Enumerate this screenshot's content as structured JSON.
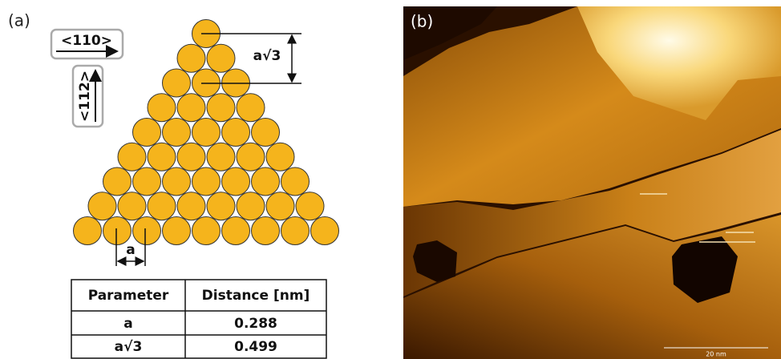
{
  "panel_a": {
    "label": "(a)",
    "directions": [
      "<110>",
      "<112>"
    ],
    "spacing_labels": [
      "a√3",
      "a"
    ],
    "table": {
      "header": [
        "Parameter",
        "Distance [nm]"
      ],
      "rows": [
        [
          "a",
          "0.288"
        ],
        [
          "a√3",
          "0.499"
        ]
      ]
    }
  },
  "panel_b": {
    "label": "(b)",
    "scale_bar": "20 nm"
  }
}
